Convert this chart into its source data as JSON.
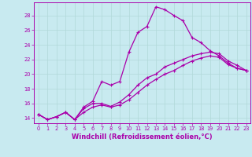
{
  "title": "",
  "xlabel": "Windchill (Refroidissement éolien,°C)",
  "ylabel": "",
  "bg_color": "#c8eaf0",
  "line_color": "#aa00aa",
  "grid_color": "#b0d8d8",
  "xlim": [
    -0.5,
    23.5
  ],
  "ylim": [
    13.3,
    29.8
  ],
  "xticks": [
    0,
    1,
    2,
    3,
    4,
    5,
    6,
    7,
    8,
    9,
    10,
    11,
    12,
    13,
    14,
    15,
    16,
    17,
    18,
    19,
    20,
    21,
    22,
    23
  ],
  "yticks": [
    14,
    16,
    18,
    20,
    22,
    24,
    26,
    28
  ],
  "line1_x": [
    0,
    1,
    2,
    3,
    4,
    5,
    6,
    7,
    8,
    9,
    10,
    11,
    12,
    13,
    14,
    15,
    16,
    17,
    18,
    19,
    20,
    21,
    22,
    23
  ],
  "line1_y": [
    14.5,
    13.8,
    14.2,
    14.8,
    13.8,
    15.5,
    16.3,
    19.0,
    18.5,
    19.0,
    23.0,
    25.7,
    26.5,
    29.2,
    28.8,
    28.0,
    27.3,
    25.0,
    24.3,
    23.2,
    22.5,
    21.5,
    20.8,
    20.5
  ],
  "line2_x": [
    0,
    1,
    2,
    3,
    4,
    5,
    6,
    7,
    8,
    9,
    10,
    11,
    12,
    13,
    14,
    15,
    16,
    17,
    18,
    19,
    20,
    21,
    22,
    23
  ],
  "line2_y": [
    14.5,
    13.8,
    14.2,
    14.8,
    13.8,
    15.3,
    16.0,
    16.0,
    15.6,
    16.2,
    17.2,
    18.5,
    19.5,
    20.0,
    21.0,
    21.5,
    22.0,
    22.5,
    22.8,
    23.0,
    22.8,
    21.8,
    21.2,
    20.5
  ],
  "line3_x": [
    0,
    1,
    2,
    3,
    4,
    5,
    6,
    7,
    8,
    9,
    10,
    11,
    12,
    13,
    14,
    15,
    16,
    17,
    18,
    19,
    20,
    21,
    22,
    23
  ],
  "line3_y": [
    14.5,
    13.8,
    14.2,
    14.8,
    13.8,
    14.8,
    15.5,
    15.8,
    15.5,
    15.8,
    16.5,
    17.5,
    18.5,
    19.3,
    20.0,
    20.5,
    21.2,
    21.8,
    22.2,
    22.5,
    22.3,
    21.3,
    20.8,
    20.5
  ],
  "marker": "+",
  "markersize": 3,
  "linewidth": 0.9,
  "tick_fontsize": 4.8,
  "label_fontsize": 6.0
}
